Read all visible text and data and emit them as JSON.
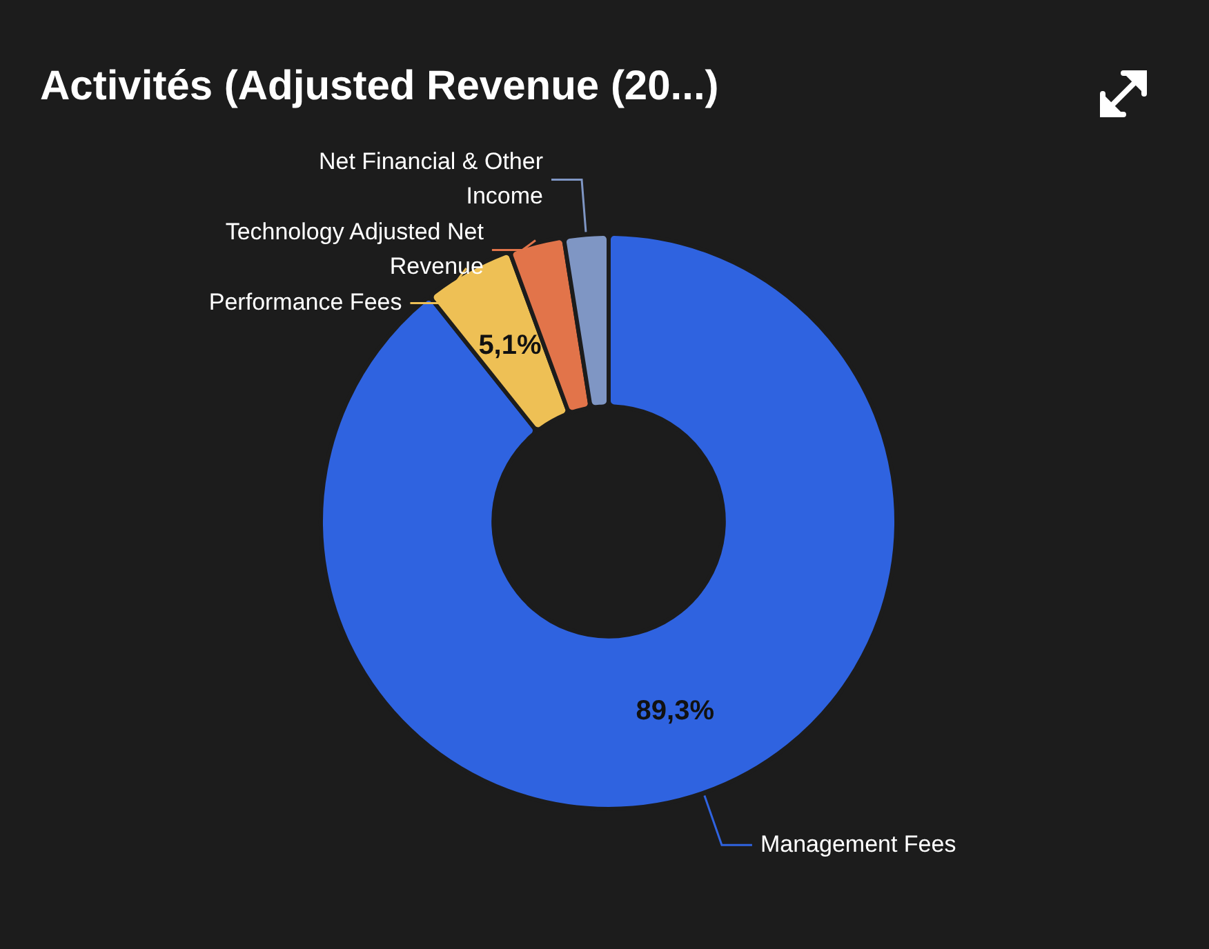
{
  "chart_data": {
    "type": "donut",
    "title": "Activités (Adjusted Revenue (20...)",
    "categories": [
      "Management Fees",
      "Performance Fees",
      "Technology Adjusted Net Revenue",
      "Net Financial & Other Income"
    ],
    "values": [
      89.3,
      5.1,
      3.1,
      2.5
    ],
    "colors": [
      "#2f63e0",
      "#eec055",
      "#e2744a",
      "#7f96c4"
    ],
    "value_labels": [
      "89,3%",
      "5,1%",
      null,
      null
    ],
    "legend": false
  }
}
